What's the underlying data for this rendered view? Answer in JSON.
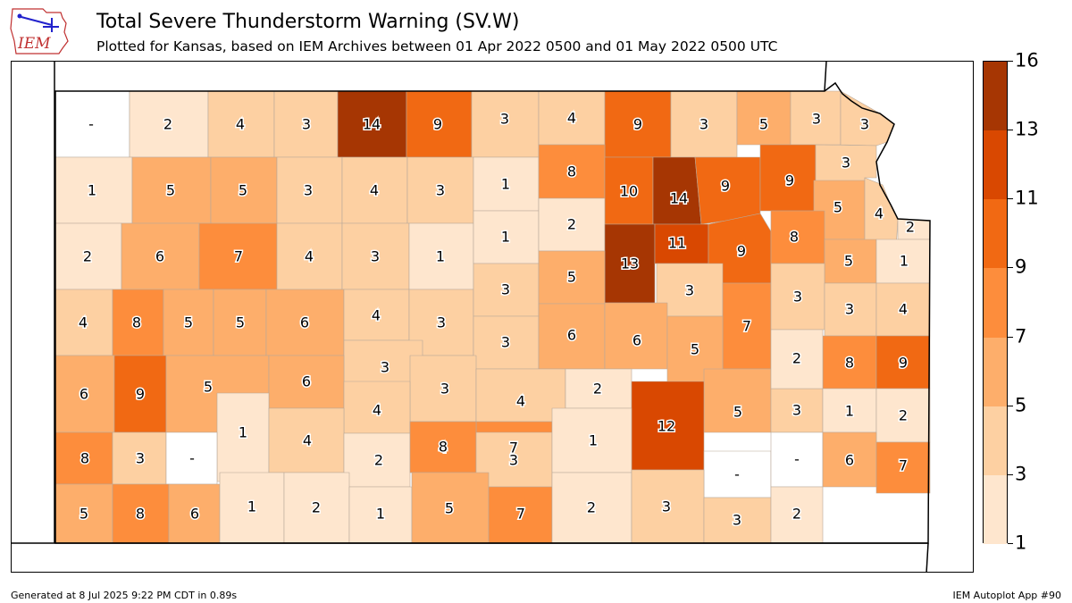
{
  "header": {
    "logo_text": "IEM",
    "title": "Total Severe Thunderstorm Warning (SV.W)",
    "subtitle": "Plotted for Kansas, based on IEM Archives  between 01 Apr 2022 0500 and 01 May 2022 0500 UTC"
  },
  "footer": {
    "generated": "Generated at 8 Jul 2025 9:22 PM CDT in 0.89s",
    "app": "IEM Autoplot App #90"
  },
  "colorbar": {
    "tick_labels": [
      "1",
      "3",
      "5",
      "7",
      "9",
      "11",
      "13",
      "16"
    ],
    "bins": [
      {
        "lo": 1,
        "hi": 3,
        "color": "#fee6ce"
      },
      {
        "lo": 3,
        "hi": 5,
        "color": "#fdd0a2"
      },
      {
        "lo": 5,
        "hi": 7,
        "color": "#fdae6b"
      },
      {
        "lo": 7,
        "hi": 9,
        "color": "#fd8d3c"
      },
      {
        "lo": 9,
        "hi": 11,
        "color": "#f16913"
      },
      {
        "lo": 11,
        "hi": 13,
        "color": "#d94801"
      },
      {
        "lo": 13,
        "hi": 16,
        "color": "#a63603"
      }
    ],
    "missing_color": "#ffffff"
  },
  "counties": [
    {
      "label": "-",
      "value": null
    },
    {
      "label": "2",
      "value": 2
    },
    {
      "label": "4",
      "value": 4
    },
    {
      "label": "3",
      "value": 3
    },
    {
      "label": "14",
      "value": 14
    },
    {
      "label": "9",
      "value": 9
    },
    {
      "label": "3",
      "value": 3
    },
    {
      "label": "4",
      "value": 4
    },
    {
      "label": "9",
      "value": 9
    },
    {
      "label": "3",
      "value": 3
    },
    {
      "label": "5",
      "value": 5
    },
    {
      "label": "3",
      "value": 3
    },
    {
      "label": "3",
      "value": 3
    },
    {
      "label": "1",
      "value": 1
    },
    {
      "label": "5",
      "value": 5
    },
    {
      "label": "5",
      "value": 5
    },
    {
      "label": "3",
      "value": 3
    },
    {
      "label": "4",
      "value": 4
    },
    {
      "label": "3",
      "value": 3
    },
    {
      "label": "1",
      "value": 1
    },
    {
      "label": "8",
      "value": 8
    },
    {
      "label": "10",
      "value": 10
    },
    {
      "label": "14",
      "value": 14
    },
    {
      "label": "9",
      "value": 9
    },
    {
      "label": "9",
      "value": 9
    },
    {
      "label": "3",
      "value": 3
    },
    {
      "label": "5",
      "value": 5
    },
    {
      "label": "4",
      "value": 4
    },
    {
      "label": "2",
      "value": 2
    },
    {
      "label": "2",
      "value": 2
    },
    {
      "label": "6",
      "value": 6
    },
    {
      "label": "7",
      "value": 7
    },
    {
      "label": "4",
      "value": 4
    },
    {
      "label": "3",
      "value": 3
    },
    {
      "label": "1",
      "value": 1
    },
    {
      "label": "1",
      "value": 1
    },
    {
      "label": "2",
      "value": 2
    },
    {
      "label": "13",
      "value": 13
    },
    {
      "label": "11",
      "value": 11
    },
    {
      "label": "9",
      "value": 9
    },
    {
      "label": "8",
      "value": 8
    },
    {
      "label": "5",
      "value": 5
    },
    {
      "label": "1",
      "value": 1
    },
    {
      "label": "4",
      "value": 4
    },
    {
      "label": "8",
      "value": 8
    },
    {
      "label": "5",
      "value": 5
    },
    {
      "label": "5",
      "value": 5
    },
    {
      "label": "6",
      "value": 6
    },
    {
      "label": "4",
      "value": 4
    },
    {
      "label": "3",
      "value": 3
    },
    {
      "label": "3",
      "value": 3
    },
    {
      "label": "5",
      "value": 5
    },
    {
      "label": "3",
      "value": 3
    },
    {
      "label": "7",
      "value": 7
    },
    {
      "label": "3",
      "value": 3
    },
    {
      "label": "3",
      "value": 3
    },
    {
      "label": "4",
      "value": 4
    },
    {
      "label": "3",
      "value": 3
    },
    {
      "label": "6",
      "value": 6
    },
    {
      "label": "6",
      "value": 6
    },
    {
      "label": "5",
      "value": 5
    },
    {
      "label": "3",
      "value": 3
    },
    {
      "label": "6",
      "value": 6
    },
    {
      "label": "9",
      "value": 9
    },
    {
      "label": "5",
      "value": 5
    },
    {
      "label": "6",
      "value": 6
    },
    {
      "label": "1",
      "value": 1
    },
    {
      "label": "3",
      "value": 3
    },
    {
      "label": "4",
      "value": 4
    },
    {
      "label": "4",
      "value": 4
    },
    {
      "label": "2",
      "value": 2
    },
    {
      "label": "5",
      "value": 5
    },
    {
      "label": "3",
      "value": 3
    },
    {
      "label": "8",
      "value": 8
    },
    {
      "label": "9",
      "value": 9
    },
    {
      "label": "4",
      "value": 4
    },
    {
      "label": "12",
      "value": 12
    },
    {
      "label": "2",
      "value": 2
    },
    {
      "label": "1",
      "value": 1
    },
    {
      "label": "2",
      "value": 2
    },
    {
      "label": "4",
      "value": 4
    },
    {
      "label": "7",
      "value": 7
    },
    {
      "label": "8",
      "value": 8
    },
    {
      "label": "3",
      "value": 3
    },
    {
      "label": "-",
      "value": null
    },
    {
      "label": "2",
      "value": 2
    },
    {
      "label": "8",
      "value": 8
    },
    {
      "label": "3",
      "value": 3
    },
    {
      "label": "1",
      "value": 1
    },
    {
      "label": "-",
      "value": null
    },
    {
      "label": "-",
      "value": null
    },
    {
      "label": "6",
      "value": 6
    },
    {
      "label": "7",
      "value": 7
    },
    {
      "label": "5",
      "value": 5
    },
    {
      "label": "8",
      "value": 8
    },
    {
      "label": "6",
      "value": 6
    },
    {
      "label": "1",
      "value": 1
    },
    {
      "label": "2",
      "value": 2
    },
    {
      "label": "1",
      "value": 1
    },
    {
      "label": "5",
      "value": 5
    },
    {
      "label": "7",
      "value": 7
    },
    {
      "label": "2",
      "value": 2
    },
    {
      "label": "3",
      "value": 3
    },
    {
      "label": "3",
      "value": 3
    },
    {
      "label": "2",
      "value": 2
    }
  ]
}
